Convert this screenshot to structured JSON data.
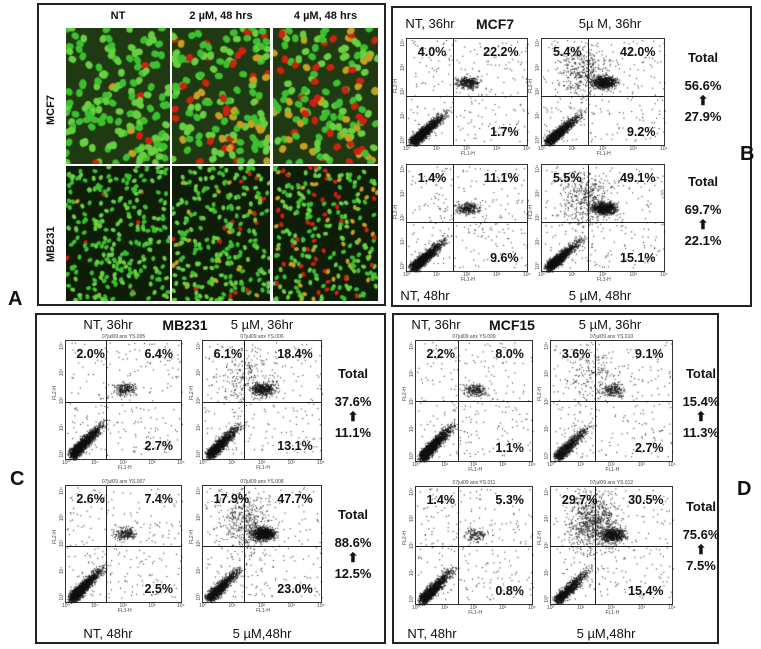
{
  "panel_a": {
    "letter": "A",
    "columns": [
      "NT",
      "2 µM, 48 hrs",
      "4 µM, 48 hrs"
    ],
    "rows": [
      "MCF7",
      "MB231"
    ]
  },
  "axis": {
    "x_label": "FL1-H",
    "y_label": "FL2-H",
    "ticks": [
      "10⁰",
      "10¹",
      "10²",
      "10³",
      "10⁴"
    ]
  },
  "panel_b": {
    "letter": "B",
    "title": "MCF7",
    "top_left": "NT, 36hr",
    "top_right": "5µ M, 36hr",
    "bottom_left": "NT, 48hr",
    "bottom_right": "5 µM, 48hr",
    "plots": [
      {
        "ul": "4.0%",
        "ur": "22.2%",
        "lr": "1.7%",
        "id": ""
      },
      {
        "ul": "5.4%",
        "ur": "42.0%",
        "lr": "9.2%",
        "id": ""
      },
      {
        "ul": "1.4%",
        "ur": "11.1%",
        "lr": "9.6%",
        "id": ""
      },
      {
        "ul": "5.5%",
        "ur": "49.1%",
        "lr": "15.1%",
        "id": ""
      }
    ],
    "totals": [
      {
        "label": "Total",
        "after": "56.6%",
        "before": "27.9%"
      },
      {
        "label": "Total",
        "after": "69.7%",
        "before": "22.1%"
      }
    ]
  },
  "panel_c": {
    "letter": "C",
    "title": "MB231",
    "top_left": "NT, 36hr",
    "top_right": "5 µM, 36hr",
    "bottom_left": "NT, 48hr",
    "bottom_right": "5 µM,48hr",
    "plots": [
      {
        "ul": "2.0%",
        "ur": "6.4%",
        "lr": "2.7%",
        "id": "07jul09 anx YS.005"
      },
      {
        "ul": "6.1%",
        "ur": "18.4%",
        "lr": "13.1%",
        "id": "07jul09 anx YS.006"
      },
      {
        "ul": "2.6%",
        "ur": "7.4%",
        "lr": "2.5%",
        "id": "07jul09 anx YS.007"
      },
      {
        "ul": "17.9%",
        "ur": "47.7%",
        "lr": "23.0%",
        "id": "07jul09 anx YS.008"
      }
    ],
    "totals": [
      {
        "label": "Total",
        "after": "37.6%",
        "before": "11.1%"
      },
      {
        "label": "Total",
        "after": "88.6%",
        "before": "12.5%"
      }
    ]
  },
  "panel_d": {
    "letter": "D",
    "title": "MCF15",
    "top_left": "NT, 36hr",
    "top_right": "5 µM, 36hr",
    "bottom_left": "NT, 48hr",
    "bottom_right": "5 µM,48hr",
    "plots": [
      {
        "ul": "2.2%",
        "ur": "8.0%",
        "lr": "1.1%",
        "id": "07jul09 anx YS.009"
      },
      {
        "ul": "3.6%",
        "ur": "9.1%",
        "lr": "2.7%",
        "id": "07jul09 anx YS.010"
      },
      {
        "ul": "1.4%",
        "ur": "5.3%",
        "lr": "0.8%",
        "id": "07jul09 anx YS.011"
      },
      {
        "ul": "29.7%",
        "ur": "30.5%",
        "lr": "15.4%",
        "id": "07jul09 anx YS.012"
      }
    ],
    "totals": [
      {
        "label": "Total",
        "after": "15.4%",
        "before": "11.3%"
      },
      {
        "label": "Total",
        "after": "75.6%",
        "before": "7.5%"
      }
    ]
  }
}
